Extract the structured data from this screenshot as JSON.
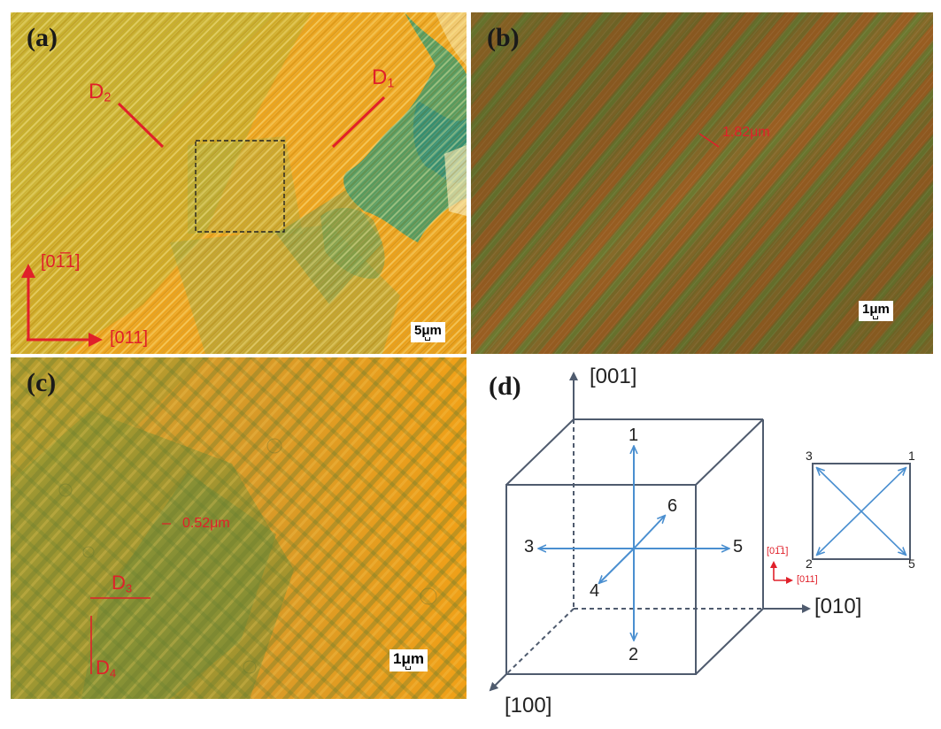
{
  "panels": {
    "a": {
      "label": "(a)",
      "d1": "D",
      "d1_sub": "1",
      "d2": "D",
      "d2_sub": "2",
      "axis_vertical": "[01̄1]",
      "axis_vertical_display": "[01̅1]",
      "axis_horizontal": "[011]",
      "scale": "5μm"
    },
    "b": {
      "label": "(b)",
      "measure": "1.82μm",
      "scale": "1μm"
    },
    "c": {
      "label": "(c)",
      "measure": "0.52μm",
      "d3": "D",
      "d3_sub": "3",
      "d4": "D",
      "d4_sub": "4",
      "scale": "1μm"
    },
    "d": {
      "label": "(d)",
      "axis_z": "[001]",
      "axis_y": "[010]",
      "axis_x": "[100]",
      "cube_nums": [
        "1",
        "2",
        "3",
        "4",
        "5",
        "6"
      ],
      "square_corners": {
        "tl": "3",
        "tr": "1",
        "bl": "2",
        "br": "5"
      },
      "inset_vertical": "[01̅1]",
      "inset_horizontal": "[011]"
    }
  },
  "colors": {
    "red": "#e0202a",
    "blue_arrow": "#4a8fd0",
    "cube_line": "#4f5b6e"
  }
}
